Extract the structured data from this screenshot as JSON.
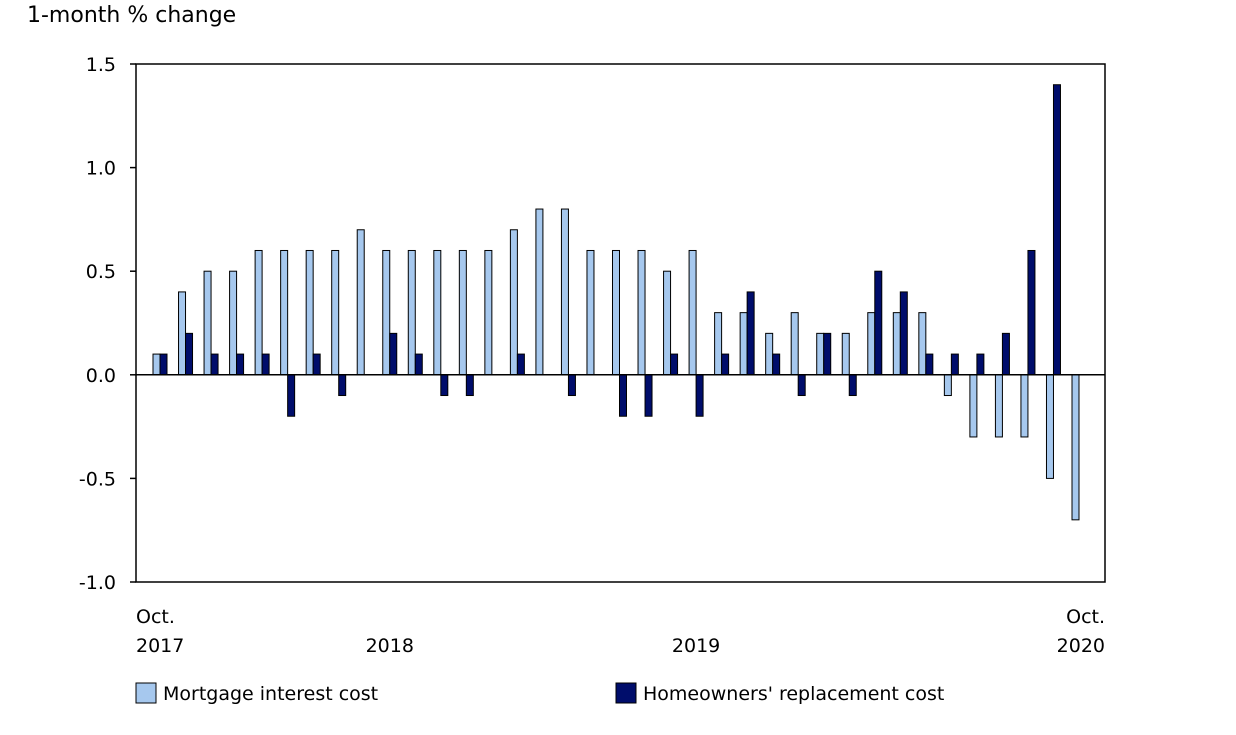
{
  "chart_data": {
    "type": "bar",
    "ylabel": "1-month % change",
    "ylim": [
      -1.0,
      1.5
    ],
    "yticks": [
      "1.5",
      "1.0",
      "0.5",
      "0.0",
      "-0.5",
      "-1.0"
    ],
    "ytick_values": [
      1.5,
      1.0,
      0.5,
      0.0,
      -0.5,
      -1.0
    ],
    "x_tick_labels": [
      {
        "index": 0,
        "lines": [
          "Oct.",
          "2017"
        ],
        "anchor": "start"
      },
      {
        "index": 9,
        "lines": [
          "",
          "2018"
        ],
        "anchor": "middle"
      },
      {
        "index": 21,
        "lines": [
          "",
          "2019"
        ],
        "anchor": "middle"
      },
      {
        "index": 36,
        "lines": [
          "Oct.",
          "2020"
        ],
        "anchor": "end"
      }
    ],
    "categories": [
      "Oct 2017",
      "Nov 2017",
      "Dec 2017",
      "Jan 2018",
      "Feb 2018",
      "Mar 2018",
      "Apr 2018",
      "May 2018",
      "Jun 2018",
      "Jul 2018",
      "Aug 2018",
      "Sep 2018",
      "Oct 2018",
      "Nov 2018",
      "Dec 2018",
      "Jan 2019",
      "Feb 2019",
      "Mar 2019",
      "Apr 2019",
      "May 2019",
      "Jun 2019",
      "Jul 2019",
      "Aug 2019",
      "Sep 2019",
      "Oct 2019",
      "Nov 2019",
      "Dec 2019",
      "Jan 2020",
      "Feb 2020",
      "Mar 2020",
      "Apr 2020",
      "May 2020",
      "Jun 2020",
      "Jul 2020",
      "Aug 2020",
      "Sep 2020",
      "Oct 2020"
    ],
    "series": [
      {
        "name": "Mortgage interest cost",
        "color": "#a6c8ee",
        "values": [
          0.1,
          0.4,
          0.5,
          0.5,
          0.6,
          0.6,
          0.6,
          0.6,
          0.7,
          0.6,
          0.6,
          0.6,
          0.6,
          0.6,
          0.7,
          0.8,
          0.8,
          0.6,
          0.6,
          0.6,
          0.5,
          0.6,
          0.3,
          0.3,
          0.2,
          0.3,
          0.2,
          0.2,
          0.3,
          0.3,
          0.3,
          -0.1,
          -0.3,
          -0.3,
          -0.3,
          -0.5,
          -0.7
        ]
      },
      {
        "name": "Homeowners' replacement cost",
        "color": "#000d6b",
        "values": [
          0.1,
          0.2,
          0.1,
          0.1,
          0.1,
          -0.2,
          0.1,
          -0.1,
          0.0,
          0.2,
          0.1,
          -0.1,
          -0.1,
          0.0,
          0.1,
          0.0,
          -0.1,
          0.0,
          -0.2,
          -0.2,
          0.1,
          -0.2,
          0.1,
          0.4,
          0.1,
          -0.1,
          0.2,
          -0.1,
          0.5,
          0.4,
          0.1,
          0.1,
          0.1,
          0.2,
          0.6,
          1.4,
          0.0
        ]
      }
    ],
    "legend_position": "bottom"
  }
}
